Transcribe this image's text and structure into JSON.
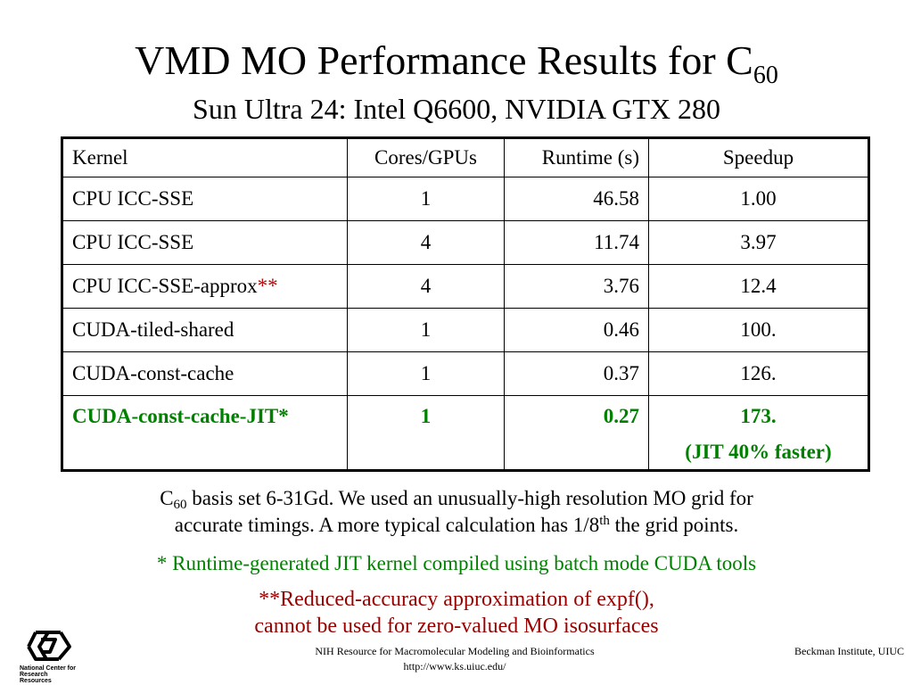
{
  "slide": {
    "title": "VMD MO Performance Results for C",
    "title_sub": "60",
    "subtitle": "Sun Ultra 24: Intel Q6600, NVIDIA GTX 280"
  },
  "table": {
    "headers": [
      "Kernel",
      "Cores/GPUs",
      "Runtime (s)",
      "Speedup"
    ],
    "rows": [
      {
        "kernel": "CPU ICC-SSE",
        "mark": "",
        "cores": "1",
        "runtime": "46.58",
        "speedup": "1.00"
      },
      {
        "kernel": "CPU ICC-SSE",
        "mark": "",
        "cores": "4",
        "runtime": "11.74",
        "speedup": "3.97"
      },
      {
        "kernel": "CPU ICC-SSE-approx",
        "mark": "**",
        "cores": "4",
        "runtime": "3.76",
        "speedup": "12.4"
      },
      {
        "kernel": "CUDA-tiled-shared",
        "mark": "",
        "cores": "1",
        "runtime": "0.46",
        "speedup": "100."
      },
      {
        "kernel": "CUDA-const-cache",
        "mark": "",
        "cores": "1",
        "runtime": "0.37",
        "speedup": "126."
      },
      {
        "kernel": "CUDA-const-cache-JIT*",
        "mark": "",
        "cores": "1",
        "runtime": "0.27",
        "speedup": "173.",
        "note": "(JIT 40% faster)"
      }
    ]
  },
  "notes": {
    "basis_c": "C",
    "basis_sub": "60",
    "basis_line1": " basis set 6-31Gd.  We used an unusually-high resolution MO grid for",
    "basis_line2a": "accurate timings.  A more typical calculation has 1/8",
    "basis_sup": "th",
    "basis_line2b": " the grid points.",
    "jit_note": "* Runtime-generated JIT kernel compiled using batch mode CUDA tools",
    "approx_line1": "**Reduced-accuracy approximation of expf(),",
    "approx_line2": "cannot be used for zero-valued MO isosurfaces"
  },
  "footer": {
    "logo_line1": "National Center for",
    "logo_line2": "Research Resources",
    "center_line1": "NIH Resource for Macromolecular Modeling and Bioinformatics",
    "center_line2": "http://www.ks.uiuc.edu/",
    "right": "Beckman Institute, UIUC"
  },
  "colors": {
    "highlight_green": "#008000",
    "approx_red": "#990000",
    "mark_red": "#c00000"
  }
}
